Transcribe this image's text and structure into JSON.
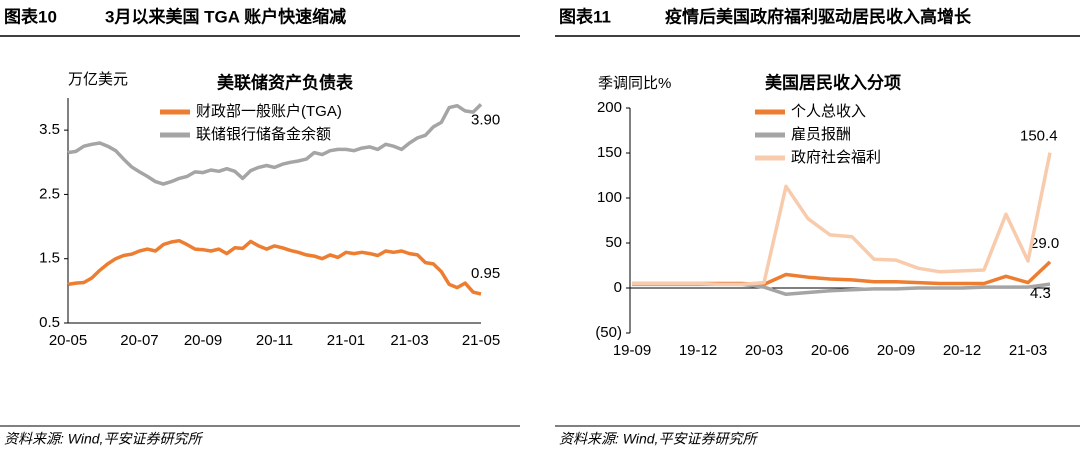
{
  "panels": [
    {
      "number": "图表10",
      "header": "3月以来美国 TGA 账户快速缩减",
      "source": "资料来源: Wind,平安证券研究所"
    },
    {
      "number": "图表11",
      "header": "疫情后美国政府福利驱动居民收入高增长",
      "source": "资料来源: Wind,平安证券研究所"
    }
  ],
  "chart_data": [
    {
      "type": "line",
      "title": "美联储资产负债表",
      "y_label": "万亿美元",
      "categories": [
        "20-05",
        null,
        null,
        null,
        null,
        null,
        null,
        null,
        null,
        "20-07",
        null,
        null,
        null,
        null,
        null,
        null,
        null,
        "20-09",
        null,
        null,
        null,
        null,
        null,
        null,
        null,
        null,
        "20-11",
        null,
        null,
        null,
        null,
        null,
        null,
        null,
        null,
        "21-01",
        null,
        null,
        null,
        null,
        null,
        null,
        null,
        "21-03",
        null,
        null,
        null,
        null,
        null,
        null,
        null,
        null,
        "21-05"
      ],
      "ylim": [
        0.5,
        4.0
      ],
      "yticks": [
        0.5,
        1.5,
        2.5,
        3.5
      ],
      "series": [
        {
          "name": "财政部一般账户(TGA)",
          "color": "#ed7d31",
          "values": [
            1.1,
            1.12,
            1.13,
            1.2,
            1.32,
            1.42,
            1.5,
            1.55,
            1.57,
            1.62,
            1.65,
            1.62,
            1.72,
            1.76,
            1.78,
            1.72,
            1.65,
            1.64,
            1.62,
            1.65,
            1.58,
            1.67,
            1.66,
            1.77,
            1.7,
            1.65,
            1.7,
            1.67,
            1.63,
            1.6,
            1.56,
            1.54,
            1.5,
            1.56,
            1.52,
            1.6,
            1.58,
            1.6,
            1.58,
            1.55,
            1.62,
            1.6,
            1.62,
            1.58,
            1.56,
            1.44,
            1.42,
            1.3,
            1.1,
            1.05,
            1.12,
            0.98,
            0.95
          ],
          "value_labels": [
            null,
            null,
            null,
            null,
            null,
            null,
            null,
            null,
            null,
            null,
            null,
            null,
            null,
            null,
            null,
            null,
            null,
            null,
            null,
            null,
            null,
            null,
            null,
            null,
            null,
            null,
            null,
            null,
            null,
            null,
            null,
            null,
            null,
            null,
            null,
            null,
            null,
            null,
            null,
            null,
            null,
            null,
            null,
            null,
            null,
            null,
            null,
            null,
            null,
            null,
            null,
            null,
            "0.95"
          ]
        },
        {
          "name": "联储银行储备金余额",
          "color": "#a5a5a5",
          "values": [
            3.15,
            3.17,
            3.25,
            3.28,
            3.3,
            3.25,
            3.18,
            3.05,
            2.93,
            2.85,
            2.78,
            2.7,
            2.66,
            2.7,
            2.75,
            2.78,
            2.85,
            2.84,
            2.88,
            2.86,
            2.9,
            2.86,
            2.75,
            2.87,
            2.92,
            2.95,
            2.92,
            2.97,
            3.0,
            3.02,
            3.05,
            3.15,
            3.12,
            3.18,
            3.2,
            3.2,
            3.18,
            3.22,
            3.24,
            3.2,
            3.28,
            3.25,
            3.2,
            3.3,
            3.38,
            3.42,
            3.55,
            3.62,
            3.85,
            3.88,
            3.8,
            3.78,
            3.9
          ],
          "value_labels": [
            null,
            null,
            null,
            null,
            null,
            null,
            null,
            null,
            null,
            null,
            null,
            null,
            null,
            null,
            null,
            null,
            null,
            null,
            null,
            null,
            null,
            null,
            null,
            null,
            null,
            null,
            null,
            null,
            null,
            null,
            null,
            null,
            null,
            null,
            null,
            null,
            null,
            null,
            null,
            null,
            null,
            null,
            null,
            null,
            null,
            null,
            null,
            null,
            null,
            null,
            null,
            null,
            "3.90"
          ]
        }
      ]
    },
    {
      "type": "line",
      "title": "美国居民收入分项",
      "y_label": "季调同比%",
      "categories": [
        "19-09",
        null,
        null,
        "19-12",
        null,
        null,
        "20-03",
        null,
        null,
        "20-06",
        null,
        null,
        "20-09",
        null,
        null,
        "20-12",
        null,
        null,
        "21-03",
        null
      ],
      "ylim": [
        -50,
        200
      ],
      "yticks": [
        {
          "value": -50,
          "label": "(50)",
          "color": "#ff0000"
        },
        0,
        50,
        100,
        150,
        200
      ],
      "series": [
        {
          "name": "个人总收入",
          "color": "#ed7d31",
          "values": [
            5,
            5,
            5,
            5,
            5,
            5,
            4,
            15,
            12,
            10,
            9,
            7,
            7,
            6,
            5,
            5,
            5,
            13,
            6,
            29
          ],
          "value_labels": [
            null,
            null,
            null,
            null,
            null,
            null,
            null,
            null,
            null,
            null,
            null,
            null,
            null,
            null,
            null,
            null,
            null,
            null,
            null,
            "29.0"
          ]
        },
        {
          "name": "雇员报酬",
          "color": "#a5a5a5",
          "values": [
            4,
            4,
            4,
            4,
            4,
            4,
            1,
            -7,
            -5,
            -3,
            -2,
            -1,
            -1,
            0,
            0,
            0,
            1,
            1,
            1,
            4.3
          ],
          "value_labels": [
            null,
            null,
            null,
            null,
            null,
            null,
            null,
            null,
            null,
            null,
            null,
            null,
            null,
            null,
            null,
            null,
            null,
            null,
            null,
            "4.3"
          ]
        },
        {
          "name": "政府社会福利",
          "color": "#f8cbad",
          "values": [
            5,
            5,
            5,
            5,
            4,
            4,
            6,
            113,
            77,
            59,
            57,
            32,
            31,
            22,
            18,
            19,
            20,
            82,
            30,
            150.4
          ],
          "value_labels": [
            null,
            null,
            null,
            null,
            null,
            null,
            null,
            null,
            null,
            null,
            null,
            null,
            null,
            null,
            null,
            null,
            null,
            null,
            null,
            "150.4"
          ]
        }
      ]
    }
  ]
}
